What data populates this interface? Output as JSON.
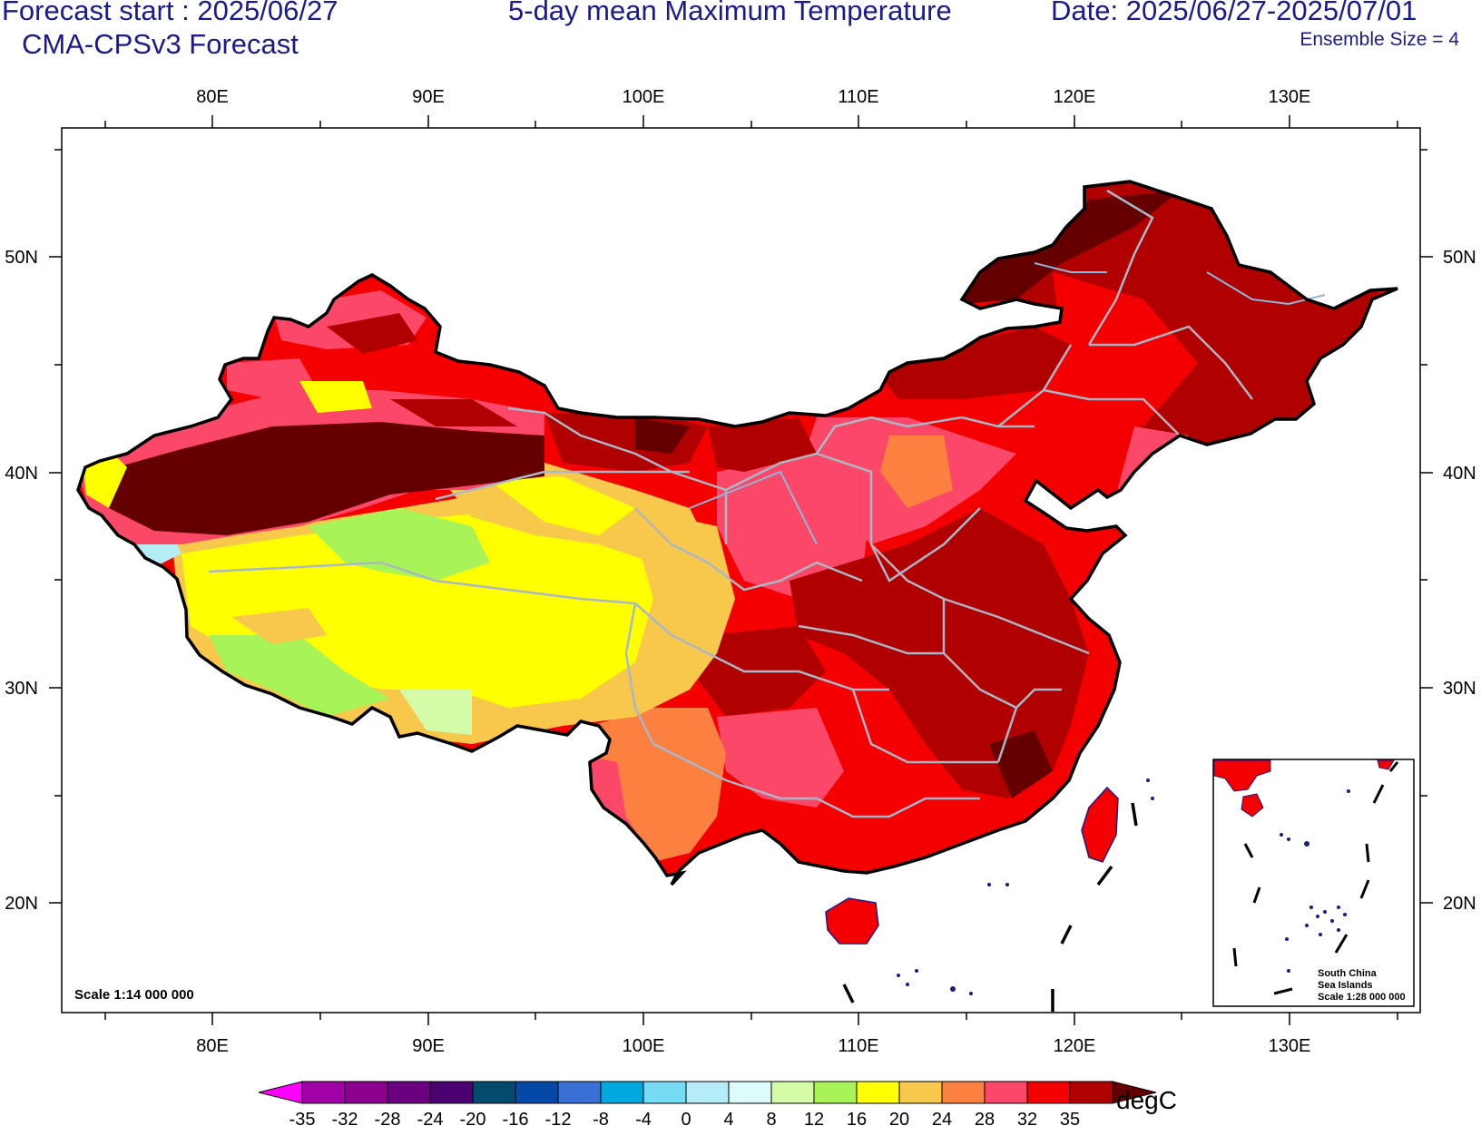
{
  "header": {
    "forecast_start": "Forecast start : 2025/06/27",
    "model": "CMA-CPSv3 Forecast",
    "title": "5-day mean Maximum Temperature",
    "date_range": "Date: 2025/06/27-2025/07/01",
    "ensemble": "Ensemble Size = 4"
  },
  "map": {
    "lon_labels": [
      "80E",
      "90E",
      "100E",
      "110E",
      "120E",
      "130E"
    ],
    "lat_labels": [
      "50N",
      "40N",
      "30N",
      "20N"
    ],
    "scale_label": "Scale 1:14 000 000",
    "inset": {
      "line1": "South China",
      "line2": "Sea Islands",
      "line3": "Scale 1:28 000 000"
    }
  },
  "colorbar": {
    "unit": "degC",
    "levels": [
      "-35",
      "-32",
      "-28",
      "-24",
      "-20",
      "-16",
      "-12",
      "-8",
      "-4",
      "0",
      "4",
      "8",
      "12",
      "16",
      "20",
      "24",
      "28",
      "32",
      "35"
    ],
    "colors": [
      "#ff00ff",
      "#a100a8",
      "#8c0090",
      "#6a0080",
      "#4a0070",
      "#044a6e",
      "#0449a8",
      "#3a6fd6",
      "#00a8e0",
      "#76dcf5",
      "#b4ecf8",
      "#dcfcfc",
      "#d4fca8",
      "#a8f458",
      "#ffff00",
      "#f8c84c",
      "#fc8040",
      "#fc4868",
      "#f40000",
      "#b00000",
      "#640000"
    ]
  }
}
